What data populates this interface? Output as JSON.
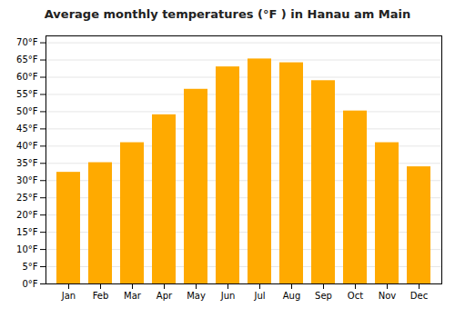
{
  "chart_data": {
    "type": "bar",
    "title": "Average monthly temperatures (°F ) in Hanau am Main",
    "categories": [
      "Jan",
      "Feb",
      "Mar",
      "Apr",
      "May",
      "Jun",
      "Jul",
      "Aug",
      "Sep",
      "Oct",
      "Nov",
      "Dec"
    ],
    "values": [
      32.4,
      35.2,
      41.0,
      49.1,
      56.5,
      63.0,
      65.3,
      64.2,
      59.0,
      50.2,
      41.0,
      34.0
    ],
    "color": "#FFAA00",
    "ylim": [
      0,
      72
    ],
    "yticks": [
      {
        "value": 0,
        "label": "0°F"
      },
      {
        "value": 5,
        "label": "5°F"
      },
      {
        "value": 10,
        "label": "10°F"
      },
      {
        "value": 15,
        "label": "15°F"
      },
      {
        "value": 20,
        "label": "20°F"
      },
      {
        "value": 25,
        "label": "25°F"
      },
      {
        "value": 30,
        "label": "30°F"
      },
      {
        "value": 35,
        "label": "35°F"
      },
      {
        "value": 40,
        "label": "40°F"
      },
      {
        "value": 45,
        "label": "45°F"
      },
      {
        "value": 50,
        "label": "50°F"
      },
      {
        "value": 55,
        "label": "55°F"
      },
      {
        "value": 60,
        "label": "60°F"
      },
      {
        "value": 65,
        "label": "65°F"
      },
      {
        "value": 70,
        "label": "70°F"
      }
    ],
    "grid": true
  }
}
